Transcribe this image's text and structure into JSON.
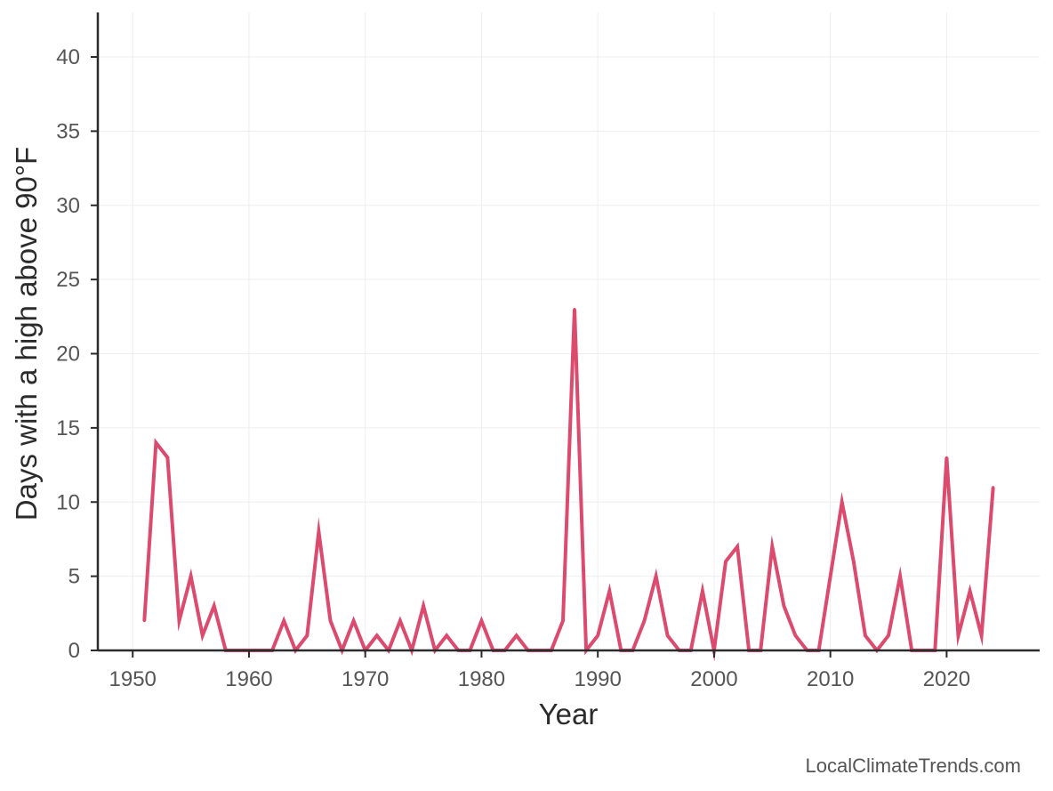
{
  "chart_data": {
    "type": "line",
    "xlabel": "Year",
    "ylabel": "Days with a high above 90°F",
    "xlim": [
      1947,
      2028
    ],
    "ylim": [
      0,
      43
    ],
    "xticks": [
      1950,
      1960,
      1970,
      1980,
      1990,
      2000,
      2010,
      2020
    ],
    "yticks": [
      0,
      5,
      10,
      15,
      20,
      25,
      30,
      35,
      40
    ],
    "grid": true,
    "series": [
      {
        "color": "#dc4a6e",
        "x": [
          1951,
          1952,
          1953,
          1954,
          1955,
          1956,
          1957,
          1958,
          1959,
          1960,
          1961,
          1962,
          1963,
          1964,
          1965,
          1966,
          1967,
          1968,
          1969,
          1970,
          1971,
          1972,
          1973,
          1974,
          1975,
          1976,
          1977,
          1978,
          1979,
          1980,
          1981,
          1982,
          1983,
          1984,
          1985,
          1986,
          1987,
          1988,
          1989,
          1990,
          1991,
          1992,
          1993,
          1994,
          1995,
          1996,
          1997,
          1998,
          1999,
          2000,
          2001,
          2002,
          2003,
          2004,
          2005,
          2006,
          2007,
          2008,
          2009,
          2010,
          2011,
          2012,
          2013,
          2014,
          2015,
          2016,
          2017,
          2018,
          2019,
          2020,
          2021,
          2022,
          2023,
          2024
        ],
        "y": [
          2,
          14,
          13,
          2,
          5,
          1,
          3,
          0,
          0,
          0,
          0,
          0,
          2,
          0,
          1,
          8,
          2,
          0,
          2,
          0,
          1,
          0,
          2,
          0,
          3,
          0,
          1,
          0,
          0,
          2,
          0,
          0,
          1,
          0,
          0,
          0,
          2,
          23,
          0,
          1,
          4,
          0,
          0,
          2,
          5,
          1,
          0,
          0,
          4,
          0,
          6,
          7,
          0,
          0,
          7,
          3,
          1,
          0,
          0,
          5,
          10,
          6,
          1,
          0,
          1,
          5,
          0,
          0,
          0,
          13,
          1,
          4,
          1,
          11
        ]
      }
    ]
  },
  "watermark": "LocalClimateTrends.com"
}
